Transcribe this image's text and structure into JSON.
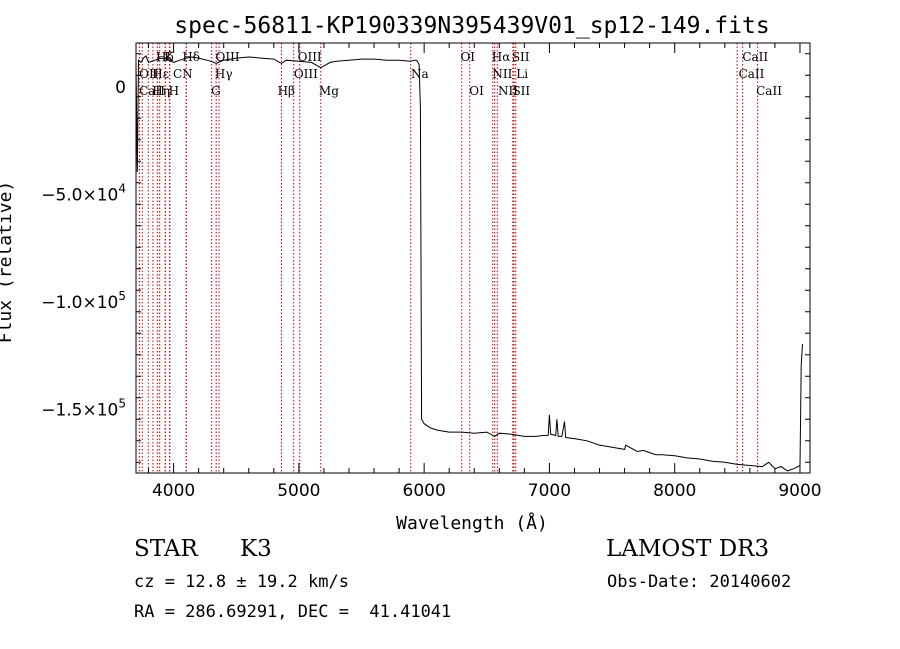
{
  "chart_data": {
    "type": "line",
    "title": "spec-56811-KP190339N395439V01_sp12-149.fits",
    "xlabel": "Wavelength (Å)",
    "ylabel": "Flux (relative)",
    "xlim": [
      3700,
      9080
    ],
    "ylim": [
      -180000,
      20000
    ],
    "xticks": [
      4000,
      5000,
      6000,
      7000,
      8000,
      9000
    ],
    "xtick_labels": [
      "4000",
      "5000",
      "6000",
      "7000",
      "8000",
      "9000"
    ],
    "yticks": [
      0,
      -50000,
      -100000,
      -150000
    ],
    "ytick_labels": [
      {
        "mant": "0",
        "exp": ""
      },
      {
        "mant": "−5.0×10",
        "exp": "4"
      },
      {
        "mant": "−1.0×10",
        "exp": "5"
      },
      {
        "mant": "−1.5×10",
        "exp": "5"
      }
    ],
    "grid": false,
    "series": [
      {
        "name": "flux",
        "x": [
          3700,
          3710,
          3720,
          3740,
          3760,
          3780,
          3800,
          3850,
          3900,
          3950,
          4000,
          4050,
          4100,
          4150,
          4200,
          4300,
          4340,
          4400,
          4500,
          4600,
          4700,
          4800,
          4861,
          4900,
          5000,
          5100,
          5175,
          5250,
          5300,
          5400,
          5500,
          5600,
          5700,
          5800,
          5890,
          5920,
          5940,
          5950,
          5960,
          5970,
          5980,
          6000,
          6050,
          6100,
          6150,
          6200,
          6300,
          6400,
          6500,
          6563,
          6600,
          6700,
          6800,
          6900,
          6950,
          6990,
          7000,
          7010,
          7050,
          7060,
          7070,
          7100,
          7120,
          7130,
          7200,
          7300,
          7400,
          7500,
          7600,
          7610,
          7700,
          7750,
          7800,
          7850,
          7900,
          8000,
          8100,
          8200,
          8300,
          8400,
          8500,
          8600,
          8700,
          8750,
          8800,
          8850,
          8900,
          8950,
          9000,
          9010,
          9020
        ],
        "y": [
          10000,
          -40000,
          12000,
          11000,
          13000,
          14000,
          11000,
          12000,
          13000,
          12500,
          11000,
          12000,
          13000,
          13500,
          13000,
          11500,
          10500,
          12000,
          13000,
          13500,
          13000,
          12500,
          10500,
          12000,
          11500,
          11000,
          8500,
          11000,
          11500,
          12000,
          12500,
          12500,
          12000,
          12000,
          11500,
          12000,
          12000,
          11000,
          10000,
          -10000,
          -155000,
          -157000,
          -159000,
          -160000,
          -160500,
          -161000,
          -161000,
          -161500,
          -161000,
          -163000,
          -161500,
          -162000,
          -163000,
          -163000,
          -162500,
          -162500,
          -153000,
          -162000,
          -162500,
          -155000,
          -163000,
          -163000,
          -156000,
          -163500,
          -164000,
          -165000,
          -167000,
          -168000,
          -169000,
          -167000,
          -170000,
          -169500,
          -170500,
          -171500,
          -171500,
          -172000,
          -173000,
          -173500,
          -174500,
          -175000,
          -176000,
          -176500,
          -177000,
          -175000,
          -178000,
          -177000,
          -179000,
          -178000,
          -176500,
          -130000,
          -120000
        ]
      }
    ],
    "line_labels": [
      {
        "name": "Hδ-top",
        "wl": 3889,
        "text": "Hδ",
        "row": 1,
        "tx": 3860
      },
      {
        "name": "K-top",
        "wl": 3934,
        "text": "K",
        "row": 1,
        "tx": 3925
      },
      {
        "name": "Hδ-top-2",
        "wl": 4102,
        "text": "Hδ",
        "row": 1,
        "tx": 4070
      },
      {
        "name": "OIII-top-1",
        "wl": 4363,
        "text": "OIII",
        "row": 1,
        "tx": 4335
      },
      {
        "name": "OIII-top-2",
        "wl": 5007,
        "text": "OIII",
        "row": 1,
        "tx": 4990
      },
      {
        "name": "OI-top",
        "wl": 6300,
        "text": "OI",
        "row": 1,
        "tx": 6290
      },
      {
        "name": "Hα-top",
        "wl": 6563,
        "text": "Hα",
        "row": 1,
        "tx": 6540
      },
      {
        "name": "SII-top",
        "wl": 6717,
        "text": "SII",
        "row": 1,
        "tx": 6700
      },
      {
        "name": "CaII-top",
        "wl": 8542,
        "text": "CaII",
        "row": 1,
        "tx": 8540
      },
      {
        "name": "OII-mid",
        "wl": 3727,
        "text": "OII",
        "row": 2,
        "tx": 3725
      },
      {
        "name": "Hε-mid",
        "wl": 3970,
        "text": "Hε",
        "row": 2,
        "tx": 3830
      },
      {
        "name": "CN-mid",
        "wl": 4100,
        "text": "CN",
        "row": 2,
        "tx": 3995
      },
      {
        "name": "Hγ-mid",
        "wl": 4340,
        "text": "Hγ",
        "row": 2,
        "tx": 4330
      },
      {
        "name": "OIII-mid",
        "wl": 4959,
        "text": "OIII",
        "row": 2,
        "tx": 4960
      },
      {
        "name": "Na-mid",
        "wl": 5893,
        "text": "Na",
        "row": 2,
        "tx": 5895
      },
      {
        "name": "NII-mid",
        "wl": 6548,
        "text": "NII",
        "row": 2,
        "tx": 6545
      },
      {
        "name": "Li-mid",
        "wl": 6708,
        "text": "Li",
        "row": 2,
        "tx": 6735
      },
      {
        "name": "CaII-mid",
        "wl": 8498,
        "text": "CaII",
        "row": 2,
        "tx": 8510
      },
      {
        "name": "CaII-low-1",
        "wl": 3933,
        "text": "CaII",
        "row": 3,
        "tx": 3725
      },
      {
        "name": "Hη-low",
        "wl": 3835,
        "text": "Hη",
        "row": 3,
        "tx": 3830
      },
      {
        "name": "H-low",
        "wl": 3968,
        "text": "H",
        "row": 3,
        "tx": 3960
      },
      {
        "name": "G-low",
        "wl": 4304,
        "text": "G",
        "row": 3,
        "tx": 4300
      },
      {
        "name": "Hβ-low",
        "wl": 4861,
        "text": "Hβ",
        "row": 3,
        "tx": 4830
      },
      {
        "name": "Mg-low",
        "wl": 5175,
        "text": "Mg",
        "row": 3,
        "tx": 5160
      },
      {
        "name": "OI-low",
        "wl": 6364,
        "text": "OI",
        "row": 3,
        "tx": 6360
      },
      {
        "name": "NII-low",
        "wl": 6584,
        "text": "NII",
        "row": 3,
        "tx": 6590
      },
      {
        "name": "SII-low",
        "wl": 6731,
        "text": "SII",
        "row": 3,
        "tx": 6705
      },
      {
        "name": "CaII-low-2",
        "wl": 8662,
        "text": "CaII",
        "row": 3,
        "tx": 8650
      }
    ],
    "extra_line_wls": [
      3750,
      3798,
      3870
    ]
  },
  "info": {
    "class_label": "STAR",
    "subclass": "K3",
    "survey": "LAMOST DR3",
    "cz": "cz = 12.8 ± 19.2 km/s",
    "obs_date": "Obs-Date: 20140602",
    "coords": "RA = 286.69291, DEC =  41.41041"
  },
  "colors": {
    "spectrum": "#000000",
    "lines": "#c00000",
    "axes": "#000000",
    "background": "#ffffff"
  }
}
